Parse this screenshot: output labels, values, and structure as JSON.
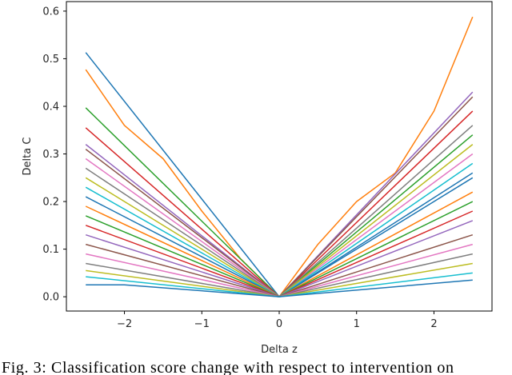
{
  "chart_data": {
    "type": "line",
    "xlabel": "Delta z",
    "ylabel": "Delta C",
    "xlim": [
      -2.75,
      2.75
    ],
    "ylim": [
      -0.03,
      0.62
    ],
    "xticks": [
      -2,
      -1,
      0,
      1,
      2
    ],
    "xtick_labels": [
      "−2",
      "−1",
      "0",
      "1",
      "2"
    ],
    "yticks": [
      0.0,
      0.1,
      0.2,
      0.3,
      0.4,
      0.5,
      0.6
    ],
    "ytick_labels": [
      "0.0",
      "0.1",
      "0.2",
      "0.3",
      "0.4",
      "0.5",
      "0.6"
    ],
    "grid": false,
    "legend": "none",
    "x_range": [
      -2.5,
      2.5
    ],
    "colors": [
      "#1f77b4",
      "#ff7f0e",
      "#2ca02c",
      "#d62728",
      "#9467bd",
      "#8c564b",
      "#e377c2",
      "#7f7f7f",
      "#bcbd22",
      "#17becf"
    ],
    "series": [
      {
        "values_at_x": {
          "-2.5": 0.513,
          "0": 0.0,
          "2.5": 0.26
        }
      },
      {
        "values_at_x": {
          "-2.5": 0.477,
          "-2": 0.36,
          "-1.5": 0.29,
          "-1": 0.18,
          "-0.5": 0.08,
          "0": 0.0,
          "0.5": 0.11,
          "1": 0.2,
          "1.5": 0.26,
          "2": 0.39,
          "2.5": 0.588
        }
      },
      {
        "values_at_x": {
          "-2.5": 0.397,
          "0": 0.0,
          "2.5": 0.34
        }
      },
      {
        "values_at_x": {
          "-2.5": 0.355,
          "0": 0.0,
          "2.5": 0.39
        }
      },
      {
        "values_at_x": {
          "-2.5": 0.32,
          "0": 0.0,
          "2.5": 0.43
        }
      },
      {
        "values_at_x": {
          "-2.5": 0.31,
          "0": 0.0,
          "2.5": 0.42
        }
      },
      {
        "values_at_x": {
          "-2.5": 0.29,
          "0": 0.0,
          "2.5": 0.3
        }
      },
      {
        "values_at_x": {
          "-2.5": 0.27,
          "0": 0.0,
          "2.5": 0.36
        }
      },
      {
        "values_at_x": {
          "-2.5": 0.25,
          "0": 0.0,
          "2.5": 0.32
        }
      },
      {
        "values_at_x": {
          "-2.5": 0.23,
          "0": 0.0,
          "2.5": 0.28
        }
      },
      {
        "values_at_x": {
          "-2.5": 0.21,
          "0": 0.0,
          "2.5": 0.25
        }
      },
      {
        "values_at_x": {
          "-2.5": 0.19,
          "0": 0.0,
          "2.5": 0.22
        }
      },
      {
        "values_at_x": {
          "-2.5": 0.17,
          "0": 0.0,
          "2.5": 0.2
        }
      },
      {
        "values_at_x": {
          "-2.5": 0.15,
          "0": 0.0,
          "2.5": 0.18
        }
      },
      {
        "values_at_x": {
          "-2.5": 0.13,
          "0": 0.0,
          "2.5": 0.16
        }
      },
      {
        "values_at_x": {
          "-2.5": 0.11,
          "0": 0.0,
          "2.5": 0.13
        }
      },
      {
        "values_at_x": {
          "-2.5": 0.09,
          "0": 0.0,
          "2.5": 0.11
        }
      },
      {
        "values_at_x": {
          "-2.5": 0.07,
          "0": 0.0,
          "2.5": 0.09
        }
      },
      {
        "values_at_x": {
          "-2.5": 0.055,
          "0": 0.0,
          "2.5": 0.07
        }
      },
      {
        "values_at_x": {
          "-2.5": 0.042,
          "0": 0.0,
          "2.5": 0.05
        }
      },
      {
        "values_at_x": {
          "-2.5": 0.025,
          "-2": 0.025,
          "0": 0.0,
          "2.5": 0.035
        }
      }
    ]
  },
  "caption": "Fig. 3: Classification score change with respect to intervention on"
}
